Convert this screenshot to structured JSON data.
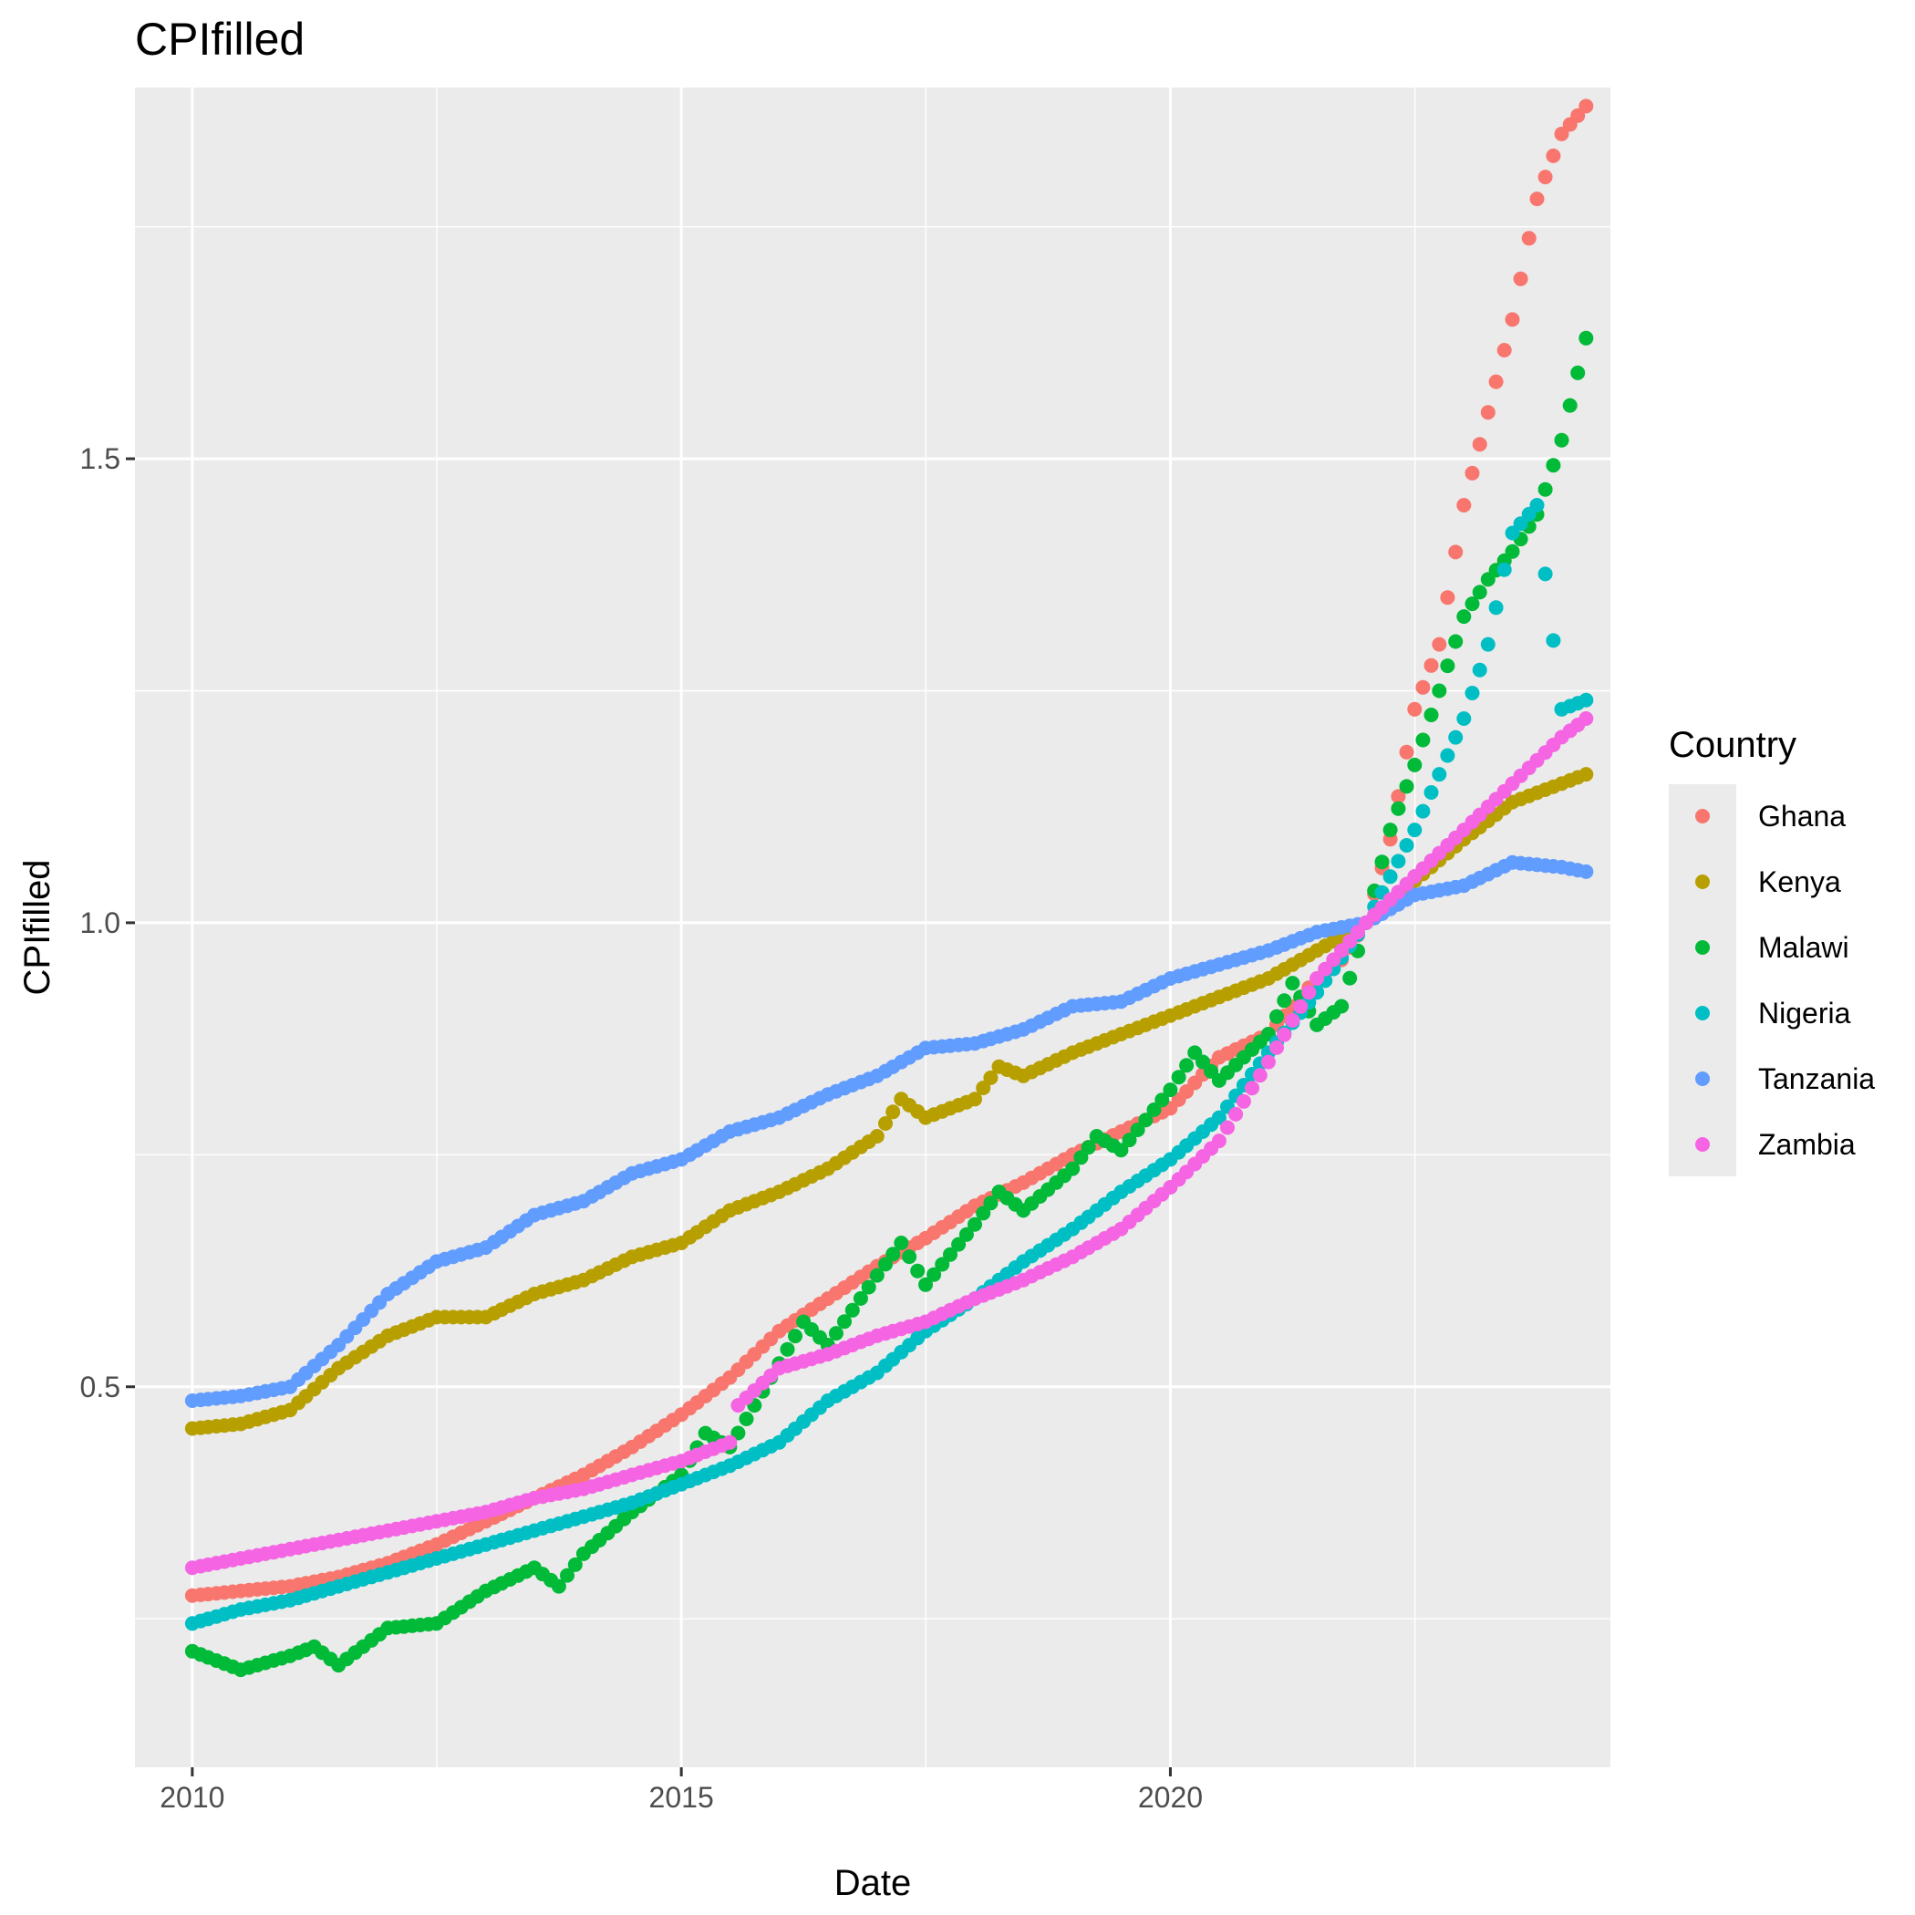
{
  "chart_data": {
    "type": "scatter",
    "title": "CPIfilled",
    "xlabel": "Date",
    "ylabel": "CPIfilled",
    "x_range": [
      "2009-06-01",
      "2024-07-01"
    ],
    "ylim": [
      0.09,
      1.9
    ],
    "x_ticks": [
      "2010",
      "2015",
      "2020"
    ],
    "y_ticks": [
      "0.5",
      "1.0",
      "1.5"
    ],
    "grid": true,
    "legend": {
      "title": "Country",
      "position": "right"
    },
    "series": [
      {
        "name": "Ghana",
        "color": "#F8766D",
        "points": [
          [
            "2010-01-01",
            0.275
          ],
          [
            "2010-07-01",
            0.28
          ],
          [
            "2011-01-01",
            0.285
          ],
          [
            "2011-07-01",
            0.295
          ],
          [
            "2012-01-01",
            0.31
          ],
          [
            "2012-07-01",
            0.33
          ],
          [
            "2013-01-01",
            0.355
          ],
          [
            "2013-07-01",
            0.38
          ],
          [
            "2014-01-01",
            0.405
          ],
          [
            "2014-07-01",
            0.435
          ],
          [
            "2015-01-01",
            0.47
          ],
          [
            "2015-07-01",
            0.51
          ],
          [
            "2016-01-01",
            0.56
          ],
          [
            "2016-07-01",
            0.595
          ],
          [
            "2017-01-01",
            0.63
          ],
          [
            "2017-07-01",
            0.66
          ],
          [
            "2018-01-01",
            0.695
          ],
          [
            "2018-07-01",
            0.72
          ],
          [
            "2019-01-01",
            0.75
          ],
          [
            "2019-07-01",
            0.775
          ],
          [
            "2020-01-01",
            0.8
          ],
          [
            "2020-07-01",
            0.855
          ],
          [
            "2021-01-01",
            0.88
          ],
          [
            "2021-07-01",
            0.94
          ],
          [
            "2021-10-01",
            0.96
          ],
          [
            "2022-01-01",
            1.0
          ],
          [
            "2022-04-01",
            1.09
          ],
          [
            "2022-07-01",
            1.23
          ],
          [
            "2022-10-01",
            1.3
          ],
          [
            "2023-01-01",
            1.45
          ],
          [
            "2023-04-01",
            1.55
          ],
          [
            "2023-07-01",
            1.65
          ],
          [
            "2023-10-01",
            1.78
          ],
          [
            "2024-01-01",
            1.85
          ],
          [
            "2024-04-01",
            1.88
          ]
        ]
      },
      {
        "name": "Kenya",
        "color": "#B79F00",
        "points": [
          [
            "2010-01-01",
            0.455
          ],
          [
            "2010-07-01",
            0.46
          ],
          [
            "2011-01-01",
            0.475
          ],
          [
            "2011-07-01",
            0.52
          ],
          [
            "2012-01-01",
            0.555
          ],
          [
            "2012-07-01",
            0.575
          ],
          [
            "2013-01-01",
            0.575
          ],
          [
            "2013-07-01",
            0.6
          ],
          [
            "2014-01-01",
            0.615
          ],
          [
            "2014-07-01",
            0.64
          ],
          [
            "2015-01-01",
            0.655
          ],
          [
            "2015-07-01",
            0.69
          ],
          [
            "2016-01-01",
            0.71
          ],
          [
            "2016-07-01",
            0.735
          ],
          [
            "2017-01-01",
            0.77
          ],
          [
            "2017-04-01",
            0.81
          ],
          [
            "2017-07-01",
            0.79
          ],
          [
            "2018-01-01",
            0.81
          ],
          [
            "2018-04-01",
            0.845
          ],
          [
            "2018-07-01",
            0.835
          ],
          [
            "2019-01-01",
            0.86
          ],
          [
            "2019-07-01",
            0.88
          ],
          [
            "2020-01-01",
            0.9
          ],
          [
            "2020-07-01",
            0.92
          ],
          [
            "2021-01-01",
            0.94
          ],
          [
            "2021-07-01",
            0.97
          ],
          [
            "2022-01-01",
            1.0
          ],
          [
            "2022-07-01",
            1.045
          ],
          [
            "2023-01-01",
            1.09
          ],
          [
            "2023-07-01",
            1.13
          ],
          [
            "2024-01-01",
            1.15
          ],
          [
            "2024-04-01",
            1.16
          ]
        ]
      },
      {
        "name": "Malawi",
        "color": "#00BA38",
        "points": [
          [
            "2010-01-01",
            0.215
          ],
          [
            "2010-04-01",
            0.205
          ],
          [
            "2010-07-01",
            0.195
          ],
          [
            "2011-01-01",
            0.21
          ],
          [
            "2011-04-01",
            0.22
          ],
          [
            "2011-07-01",
            0.2
          ],
          [
            "2012-01-01",
            0.24
          ],
          [
            "2012-07-01",
            0.245
          ],
          [
            "2013-01-01",
            0.28
          ],
          [
            "2013-07-01",
            0.305
          ],
          [
            "2013-10-01",
            0.285
          ],
          [
            "2014-01-01",
            0.32
          ],
          [
            "2014-07-01",
            0.365
          ],
          [
            "2015-01-01",
            0.405
          ],
          [
            "2015-04-01",
            0.45
          ],
          [
            "2015-07-01",
            0.435
          ],
          [
            "2016-01-01",
            0.525
          ],
          [
            "2016-04-01",
            0.57
          ],
          [
            "2016-07-01",
            0.545
          ],
          [
            "2017-01-01",
            0.62
          ],
          [
            "2017-04-01",
            0.655
          ],
          [
            "2017-07-01",
            0.61
          ],
          [
            "2018-01-01",
            0.675
          ],
          [
            "2018-04-01",
            0.71
          ],
          [
            "2018-07-01",
            0.69
          ],
          [
            "2019-01-01",
            0.735
          ],
          [
            "2019-04-01",
            0.77
          ],
          [
            "2019-07-01",
            0.755
          ],
          [
            "2020-01-01",
            0.82
          ],
          [
            "2020-04-01",
            0.86
          ],
          [
            "2020-07-01",
            0.83
          ],
          [
            "2021-01-01",
            0.88
          ],
          [
            "2021-04-01",
            0.935
          ],
          [
            "2021-07-01",
            0.89
          ],
          [
            "2021-10-01",
            0.91
          ],
          [
            "2022-01-01",
            1.0
          ],
          [
            "2022-04-01",
            1.1
          ],
          [
            "2022-07-01",
            1.17
          ],
          [
            "2022-10-01",
            1.25
          ],
          [
            "2023-01-01",
            1.33
          ],
          [
            "2023-04-01",
            1.37
          ],
          [
            "2023-07-01",
            1.4
          ],
          [
            "2023-10-01",
            1.44
          ],
          [
            "2024-01-01",
            1.52
          ],
          [
            "2024-04-01",
            1.63
          ]
        ]
      },
      {
        "name": "Nigeria",
        "color": "#00BFC4",
        "points": [
          [
            "2010-01-01",
            0.245
          ],
          [
            "2010-07-01",
            0.26
          ],
          [
            "2011-01-01",
            0.27
          ],
          [
            "2011-07-01",
            0.285
          ],
          [
            "2012-01-01",
            0.3
          ],
          [
            "2012-07-01",
            0.315
          ],
          [
            "2013-01-01",
            0.33
          ],
          [
            "2013-07-01",
            0.345
          ],
          [
            "2014-01-01",
            0.36
          ],
          [
            "2014-07-01",
            0.375
          ],
          [
            "2015-01-01",
            0.395
          ],
          [
            "2015-07-01",
            0.415
          ],
          [
            "2016-01-01",
            0.44
          ],
          [
            "2016-07-01",
            0.485
          ],
          [
            "2017-01-01",
            0.515
          ],
          [
            "2017-07-01",
            0.56
          ],
          [
            "2018-01-01",
            0.595
          ],
          [
            "2018-07-01",
            0.635
          ],
          [
            "2019-01-01",
            0.67
          ],
          [
            "2019-07-01",
            0.71
          ],
          [
            "2020-01-01",
            0.745
          ],
          [
            "2020-07-01",
            0.79
          ],
          [
            "2021-01-01",
            0.86
          ],
          [
            "2021-07-01",
            0.925
          ],
          [
            "2022-01-01",
            1.0
          ],
          [
            "2022-07-01",
            1.1
          ],
          [
            "2023-01-01",
            1.22
          ],
          [
            "2023-04-01",
            1.3
          ],
          [
            "2023-07-01",
            1.42
          ],
          [
            "2023-10-01",
            1.45
          ],
          [
            "2024-01-01",
            1.23
          ],
          [
            "2024-04-01",
            1.24
          ]
        ]
      },
      {
        "name": "Tanzania",
        "color": "#619CFF",
        "points": [
          [
            "2010-01-01",
            0.485
          ],
          [
            "2010-07-01",
            0.49
          ],
          [
            "2011-01-01",
            0.5
          ],
          [
            "2011-07-01",
            0.545
          ],
          [
            "2012-01-01",
            0.6
          ],
          [
            "2012-07-01",
            0.635
          ],
          [
            "2013-01-01",
            0.65
          ],
          [
            "2013-07-01",
            0.685
          ],
          [
            "2014-01-01",
            0.7
          ],
          [
            "2014-07-01",
            0.73
          ],
          [
            "2015-01-01",
            0.745
          ],
          [
            "2015-07-01",
            0.775
          ],
          [
            "2016-01-01",
            0.79
          ],
          [
            "2016-07-01",
            0.815
          ],
          [
            "2017-01-01",
            0.835
          ],
          [
            "2017-07-01",
            0.865
          ],
          [
            "2018-01-01",
            0.87
          ],
          [
            "2018-07-01",
            0.885
          ],
          [
            "2019-01-01",
            0.91
          ],
          [
            "2019-07-01",
            0.915
          ],
          [
            "2020-01-01",
            0.94
          ],
          [
            "2020-07-01",
            0.955
          ],
          [
            "2021-01-01",
            0.97
          ],
          [
            "2021-07-01",
            0.99
          ],
          [
            "2022-01-01",
            1.0
          ],
          [
            "2022-07-01",
            1.03
          ],
          [
            "2023-01-01",
            1.04
          ],
          [
            "2023-07-01",
            1.065
          ],
          [
            "2024-01-01",
            1.06
          ],
          [
            "2024-04-01",
            1.055
          ]
        ]
      },
      {
        "name": "Zambia",
        "color": "#F564E3",
        "points": [
          [
            "2010-01-01",
            0.305
          ],
          [
            "2010-07-01",
            0.315
          ],
          [
            "2011-01-01",
            0.325
          ],
          [
            "2011-07-01",
            0.335
          ],
          [
            "2012-01-01",
            0.345
          ],
          [
            "2012-07-01",
            0.355
          ],
          [
            "2013-01-01",
            0.365
          ],
          [
            "2013-07-01",
            0.38
          ],
          [
            "2014-01-01",
            0.39
          ],
          [
            "2014-07-01",
            0.405
          ],
          [
            "2015-01-01",
            0.42
          ],
          [
            "2015-07-01",
            0.44
          ],
          [
            "2015-08-01",
            0.48
          ],
          [
            "2016-01-01",
            0.52
          ],
          [
            "2016-07-01",
            0.535
          ],
          [
            "2017-01-01",
            0.555
          ],
          [
            "2017-07-01",
            0.57
          ],
          [
            "2018-01-01",
            0.595
          ],
          [
            "2018-07-01",
            0.615
          ],
          [
            "2019-01-01",
            0.64
          ],
          [
            "2019-07-01",
            0.67
          ],
          [
            "2020-01-01",
            0.715
          ],
          [
            "2020-07-01",
            0.765
          ],
          [
            "2021-01-01",
            0.85
          ],
          [
            "2021-07-01",
            0.94
          ],
          [
            "2022-01-01",
            1.0
          ],
          [
            "2022-07-01",
            1.05
          ],
          [
            "2023-01-01",
            1.1
          ],
          [
            "2023-07-01",
            1.15
          ],
          [
            "2024-01-01",
            1.2
          ],
          [
            "2024-04-01",
            1.22
          ]
        ]
      }
    ]
  }
}
